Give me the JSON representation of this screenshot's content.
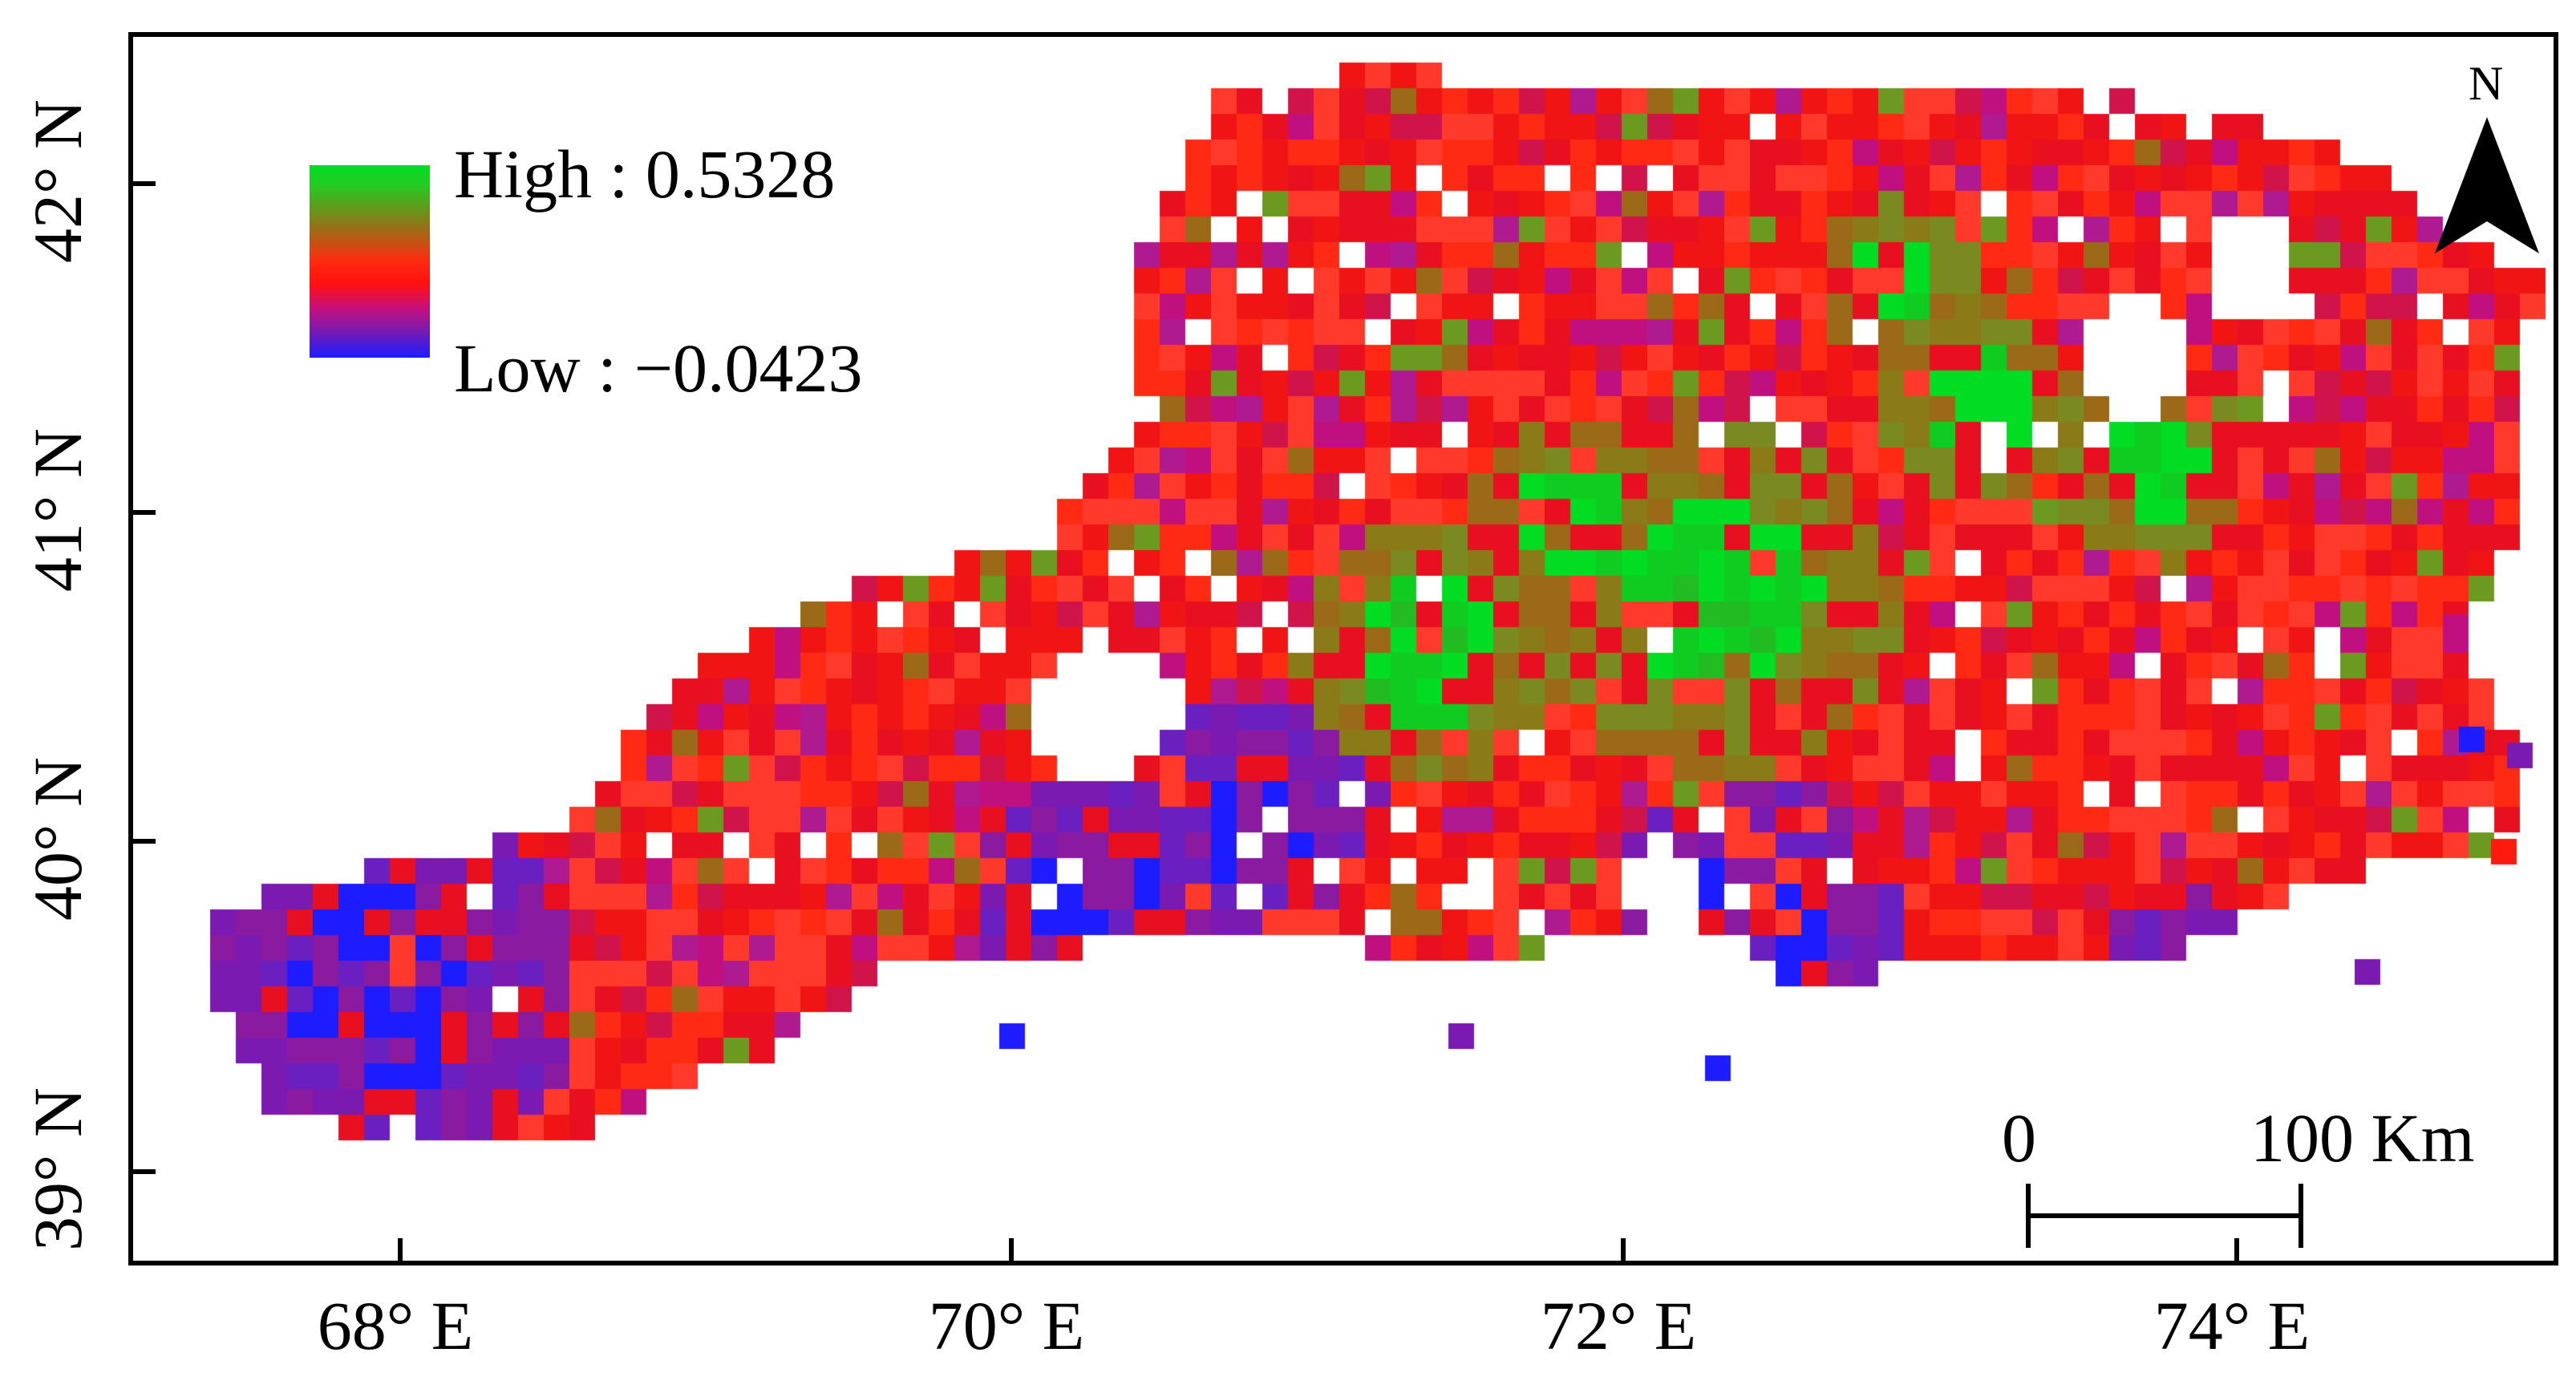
{
  "legend": {
    "high_label": "High : 0.5328",
    "low_label": "Low : −0.0423",
    "high_value": 0.5328,
    "low_value": -0.0423,
    "ramp_colors": [
      "#00dd22",
      "#8a7a18",
      "#ff1a10",
      "#7a1ab0",
      "#1c1cff"
    ]
  },
  "north_arrow": {
    "label": "N",
    "icon": "north-arrow-icon"
  },
  "scale_bar": {
    "start_label": "0",
    "end_label": "100 Km"
  },
  "axes": {
    "x_ticks": [
      "68° E",
      "70° E",
      "72° E",
      "74° E"
    ],
    "y_ticks": [
      "42° N",
      "41° N",
      "40° N",
      "39° N"
    ]
  },
  "colors": {
    "high": "#00dd22",
    "mid_high": "#8a7a18",
    "mid": "#ff1a10",
    "mid_low": "#7a1ab0",
    "low": "#1c1cff",
    "frame": "#000000"
  }
}
